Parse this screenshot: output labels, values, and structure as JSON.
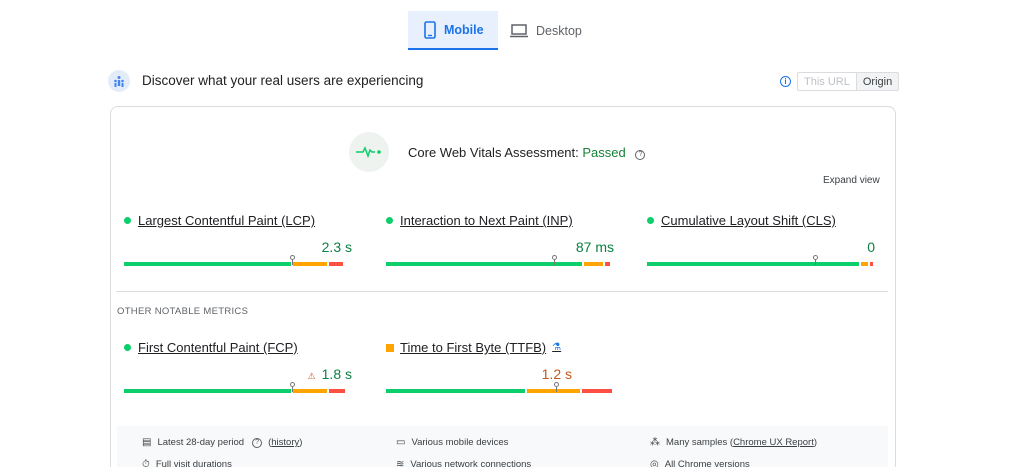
{
  "tabs": [
    {
      "label": "Mobile",
      "active": true
    },
    {
      "label": "Desktop",
      "active": false
    }
  ],
  "header": {
    "title": "Discover what your real users are experiencing",
    "toggle": {
      "this_url": "This URL",
      "origin": "Origin",
      "selected": "Origin"
    }
  },
  "assessment": {
    "label": "Core Web Vitals Assessment:",
    "status": "Passed",
    "expand": "Expand view"
  },
  "core_metrics": [
    {
      "name": "Largest Contentful Paint (LCP)",
      "value": "2.3 s",
      "status": "good",
      "distribution": [
        0.74,
        0.16,
        0.07
      ],
      "marker": 0.74
    },
    {
      "name": "Interaction to Next Paint (INP)",
      "value": "87 ms",
      "status": "good",
      "distribution": [
        0.87,
        0.09,
        0.03
      ],
      "marker": 0.74
    },
    {
      "name": "Cumulative Layout Shift (CLS)",
      "value": "0",
      "status": "good",
      "distribution": [
        0.94,
        0.04,
        0.02
      ],
      "marker": 0.74
    }
  ],
  "other_label": "OTHER NOTABLE METRICS",
  "other_metrics": [
    {
      "name": "First Contentful Paint (FCP)",
      "value": "1.8 s",
      "status": "good",
      "warning": true,
      "distribution": [
        0.74,
        0.16,
        0.08
      ],
      "marker": 0.74
    },
    {
      "name": "Time to First Byte (TTFB)",
      "value": "1.2 s",
      "status": "needs-improvement",
      "experimental": true,
      "distribution": [
        0.62,
        0.24,
        0.14
      ],
      "marker": 0.75
    }
  ],
  "footer": {
    "period": "Latest 28-day period",
    "history_link": "history",
    "devices": "Various mobile devices",
    "samples_prefix": "Many samples (",
    "samples_link": "Chrome UX Report",
    "samples_suffix": ")",
    "visit_durations": "Full visit durations",
    "network": "Various network connections",
    "versions": "All Chrome versions"
  },
  "colors": {
    "good": "#0cce6b",
    "average": "#ffa400",
    "poor": "#ff4e42",
    "accent": "#1a73e8",
    "passed_text": "#188038"
  }
}
